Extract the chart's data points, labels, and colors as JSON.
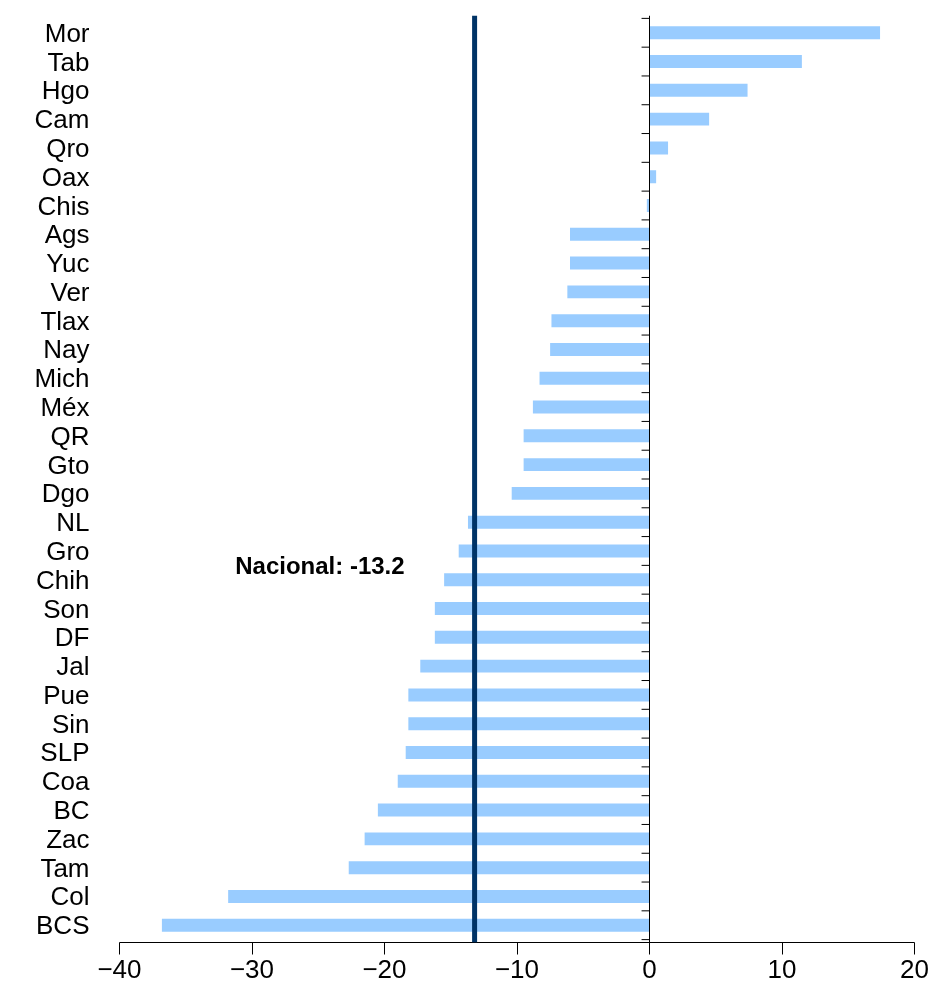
{
  "chart_data": {
    "type": "bar",
    "orientation": "horizontal",
    "categories": [
      "Mor",
      "Tab",
      "Hgo",
      "Cam",
      "Qro",
      "Oax",
      "Chis",
      "Ags",
      "Yuc",
      "Ver",
      "Tlax",
      "Nay",
      "Mich",
      "Méx",
      "QR",
      "Gto",
      "Dgo",
      "NL",
      "Gro",
      "Chih",
      "Son",
      "DF",
      "Jal",
      "Pue",
      "Sin",
      "SLP",
      "Coa",
      "BC",
      "Zac",
      "Tam",
      "Col",
      "BCS"
    ],
    "values": [
      17.4,
      11.5,
      7.4,
      4.5,
      1.4,
      0.5,
      -0.2,
      -6.0,
      -6.0,
      -6.2,
      -7.4,
      -7.5,
      -8.3,
      -8.8,
      -9.5,
      -9.5,
      -10.4,
      -13.7,
      -14.4,
      -15.5,
      -16.2,
      -16.2,
      -17.3,
      -18.2,
      -18.2,
      -18.4,
      -19.0,
      -20.5,
      -21.5,
      -22.7,
      -31.8,
      -36.8
    ],
    "color": "#99ccff",
    "xlim": [
      -40,
      20
    ],
    "xticks": [
      -40,
      -30,
      -20,
      -10,
      0,
      10,
      20
    ],
    "ref_lines": [
      {
        "axis": "x",
        "value": -13.2,
        "label": "Nacional: -13.2",
        "color": "#003366"
      }
    ]
  }
}
